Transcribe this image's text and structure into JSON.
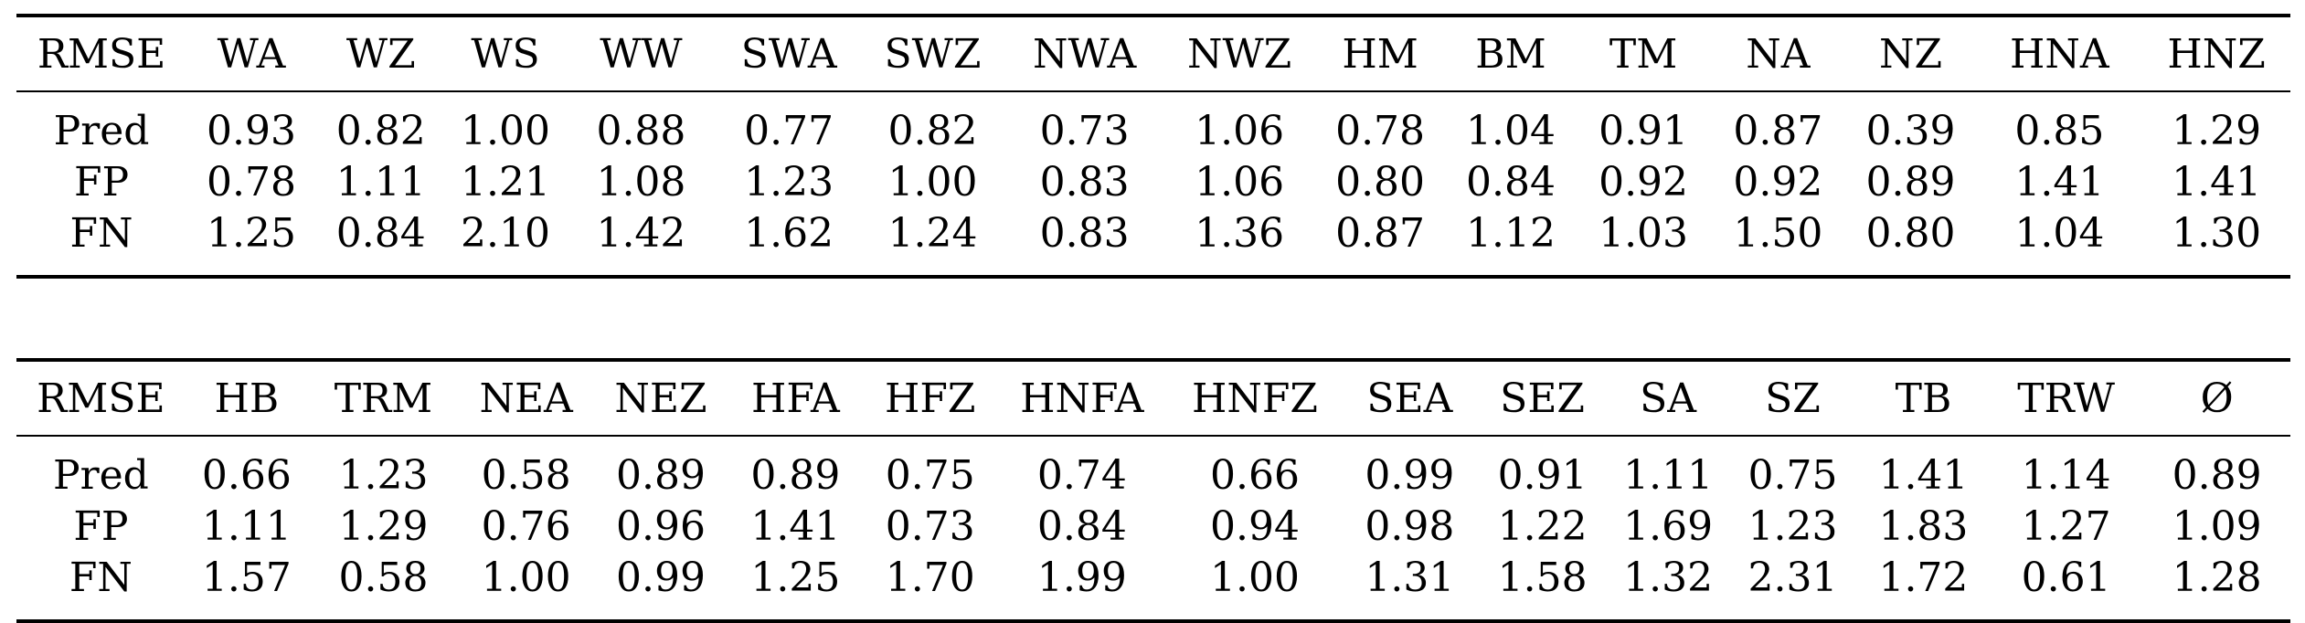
{
  "tables": [
    {
      "header": [
        "RMSE",
        "WA",
        "WZ",
        "WS",
        "WW",
        "SWA",
        "SWZ",
        "NWA",
        "NWZ",
        "HM",
        "BM",
        "TM",
        "NA",
        "NZ",
        "HNA",
        "HNZ"
      ],
      "rows": [
        [
          "Pred",
          "0.93",
          "0.82",
          "1.00",
          "0.88",
          "0.77",
          "0.82",
          "0.73",
          "1.06",
          "0.78",
          "1.04",
          "0.91",
          "0.87",
          "0.39",
          "0.85",
          "1.29"
        ],
        [
          "FP",
          "0.78",
          "1.11",
          "1.21",
          "1.08",
          "1.23",
          "1.00",
          "0.83",
          "1.06",
          "0.80",
          "0.84",
          "0.92",
          "0.92",
          "0.89",
          "1.41",
          "1.41"
        ],
        [
          "FN",
          "1.25",
          "0.84",
          "2.10",
          "1.42",
          "1.62",
          "1.24",
          "0.83",
          "1.36",
          "0.87",
          "1.12",
          "1.03",
          "1.50",
          "0.80",
          "1.04",
          "1.30"
        ]
      ]
    },
    {
      "header": [
        "RMSE",
        "HB",
        "TRM",
        "NEA",
        "NEZ",
        "HFA",
        "HFZ",
        "HNFA",
        "HNFZ",
        "SEA",
        "SEZ",
        "SA",
        "SZ",
        "TB",
        "TRW",
        "Ø"
      ],
      "rows": [
        [
          "Pred",
          "0.66",
          "1.23",
          "0.58",
          "0.89",
          "0.89",
          "0.75",
          "0.74",
          "0.66",
          "0.99",
          "0.91",
          "1.11",
          "0.75",
          "1.41",
          "1.14",
          "0.89"
        ],
        [
          "FP",
          "1.11",
          "1.29",
          "0.76",
          "0.96",
          "1.41",
          "0.73",
          "0.84",
          "0.94",
          "0.98",
          "1.22",
          "1.69",
          "1.23",
          "1.83",
          "1.27",
          "1.09"
        ],
        [
          "FN",
          "1.57",
          "0.58",
          "1.00",
          "0.99",
          "1.25",
          "1.70",
          "1.99",
          "1.00",
          "1.31",
          "1.58",
          "1.32",
          "2.31",
          "1.72",
          "0.61",
          "1.28"
        ]
      ]
    }
  ]
}
